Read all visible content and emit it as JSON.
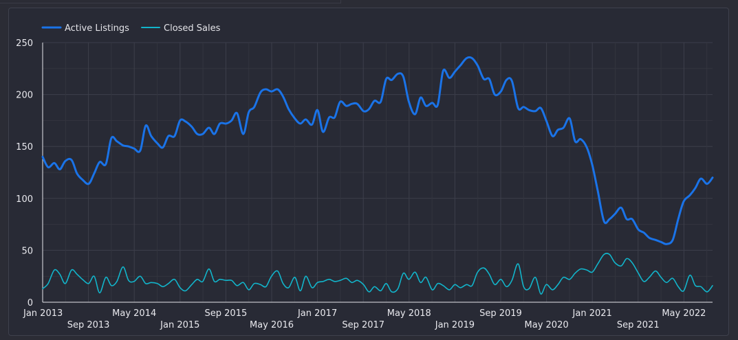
{
  "chart_data": {
    "type": "line",
    "x_ticks": [
      "Jan 2013",
      "Sep 2013",
      "May 2014",
      "Jan 2015",
      "Sep 2015",
      "May 2016",
      "Jan 2017",
      "Sep 2017",
      "May 2018",
      "Jan 2019",
      "Sep 2019",
      "May 2020",
      "Jan 2021",
      "Sep 2021",
      "May 2022"
    ],
    "y_ticks": [
      "0",
      "50",
      "100",
      "150",
      "200",
      "250"
    ],
    "ylim": [
      0,
      250
    ],
    "xlim": [
      2013.0,
      2022.75
    ],
    "grid": true,
    "legend_position": "top-left",
    "colors": {
      "background": "#282a35",
      "grid": "#3d3f4b",
      "axis": "#e6e6ea",
      "text": "#e9e9ee"
    },
    "series": [
      {
        "name": "Active Listings",
        "color": "#1a73e8",
        "points": [
          [
            2013.0,
            140
          ],
          [
            2013.08,
            130
          ],
          [
            2013.17,
            134
          ],
          [
            2013.25,
            128
          ],
          [
            2013.33,
            136
          ],
          [
            2013.42,
            137
          ],
          [
            2013.5,
            124
          ],
          [
            2013.58,
            118
          ],
          [
            2013.67,
            114
          ],
          [
            2013.75,
            124
          ],
          [
            2013.83,
            135
          ],
          [
            2013.92,
            133
          ],
          [
            2014.0,
            158
          ],
          [
            2014.08,
            155
          ],
          [
            2014.17,
            151
          ],
          [
            2014.25,
            150
          ],
          [
            2014.33,
            148
          ],
          [
            2014.42,
            146
          ],
          [
            2014.5,
            170
          ],
          [
            2014.58,
            160
          ],
          [
            2014.67,
            153
          ],
          [
            2014.75,
            149
          ],
          [
            2014.83,
            160
          ],
          [
            2014.92,
            160
          ],
          [
            2015.0,
            175
          ],
          [
            2015.08,
            174
          ],
          [
            2015.17,
            169
          ],
          [
            2015.25,
            162
          ],
          [
            2015.33,
            162
          ],
          [
            2015.42,
            168
          ],
          [
            2015.5,
            162
          ],
          [
            2015.58,
            172
          ],
          [
            2015.67,
            172
          ],
          [
            2015.75,
            175
          ],
          [
            2015.83,
            182
          ],
          [
            2015.92,
            162
          ],
          [
            2016.0,
            183
          ],
          [
            2016.08,
            188
          ],
          [
            2016.17,
            202
          ],
          [
            2016.25,
            205
          ],
          [
            2016.33,
            203
          ],
          [
            2016.42,
            205
          ],
          [
            2016.5,
            198
          ],
          [
            2016.58,
            186
          ],
          [
            2016.67,
            177
          ],
          [
            2016.75,
            172
          ],
          [
            2016.83,
            176
          ],
          [
            2016.92,
            171
          ],
          [
            2017.0,
            185
          ],
          [
            2017.08,
            164
          ],
          [
            2017.17,
            178
          ],
          [
            2017.25,
            178
          ],
          [
            2017.33,
            193
          ],
          [
            2017.42,
            189
          ],
          [
            2017.5,
            191
          ],
          [
            2017.58,
            191
          ],
          [
            2017.67,
            184
          ],
          [
            2017.75,
            186
          ],
          [
            2017.83,
            194
          ],
          [
            2017.92,
            193
          ],
          [
            2018.0,
            215
          ],
          [
            2018.08,
            214
          ],
          [
            2018.17,
            220
          ],
          [
            2018.25,
            217
          ],
          [
            2018.33,
            193
          ],
          [
            2018.42,
            181
          ],
          [
            2018.5,
            197
          ],
          [
            2018.58,
            189
          ],
          [
            2018.67,
            192
          ],
          [
            2018.75,
            190
          ],
          [
            2018.83,
            223
          ],
          [
            2018.92,
            216
          ],
          [
            2019.0,
            222
          ],
          [
            2019.08,
            228
          ],
          [
            2019.17,
            235
          ],
          [
            2019.25,
            235
          ],
          [
            2019.33,
            228
          ],
          [
            2019.42,
            215
          ],
          [
            2019.5,
            215
          ],
          [
            2019.58,
            200
          ],
          [
            2019.67,
            203
          ],
          [
            2019.75,
            214
          ],
          [
            2019.83,
            213
          ],
          [
            2019.92,
            187
          ],
          [
            2020.0,
            188
          ],
          [
            2020.08,
            185
          ],
          [
            2020.17,
            184
          ],
          [
            2020.25,
            187
          ],
          [
            2020.33,
            175
          ],
          [
            2020.42,
            160
          ],
          [
            2020.5,
            166
          ],
          [
            2020.58,
            168
          ],
          [
            2020.67,
            177
          ],
          [
            2020.75,
            155
          ],
          [
            2020.83,
            157
          ],
          [
            2020.92,
            149
          ],
          [
            2021.0,
            132
          ],
          [
            2021.08,
            107
          ],
          [
            2021.17,
            78
          ],
          [
            2021.25,
            80
          ],
          [
            2021.33,
            85
          ],
          [
            2021.42,
            91
          ],
          [
            2021.5,
            80
          ],
          [
            2021.58,
            80
          ],
          [
            2021.67,
            70
          ],
          [
            2021.75,
            67
          ],
          [
            2021.83,
            62
          ],
          [
            2021.92,
            60
          ],
          [
            2022.0,
            58
          ],
          [
            2022.08,
            56
          ],
          [
            2022.17,
            60
          ],
          [
            2022.25,
            80
          ],
          [
            2022.33,
            97
          ],
          [
            2022.42,
            103
          ],
          [
            2022.5,
            110
          ],
          [
            2022.58,
            119
          ],
          [
            2022.67,
            114
          ],
          [
            2022.75,
            120
          ]
        ]
      },
      {
        "name": "Closed Sales",
        "color": "#12b5cb",
        "points": [
          [
            2013.0,
            13
          ],
          [
            2013.08,
            18
          ],
          [
            2013.17,
            31
          ],
          [
            2013.25,
            27
          ],
          [
            2013.33,
            18
          ],
          [
            2013.42,
            31
          ],
          [
            2013.5,
            27
          ],
          [
            2013.58,
            22
          ],
          [
            2013.67,
            18
          ],
          [
            2013.75,
            25
          ],
          [
            2013.83,
            9
          ],
          [
            2013.92,
            24
          ],
          [
            2014.0,
            16
          ],
          [
            2014.08,
            20
          ],
          [
            2014.17,
            34
          ],
          [
            2014.25,
            21
          ],
          [
            2014.33,
            20
          ],
          [
            2014.42,
            25
          ],
          [
            2014.5,
            18
          ],
          [
            2014.58,
            19
          ],
          [
            2014.67,
            18
          ],
          [
            2014.75,
            15
          ],
          [
            2014.83,
            18
          ],
          [
            2014.92,
            22
          ],
          [
            2015.0,
            14
          ],
          [
            2015.08,
            11
          ],
          [
            2015.17,
            17
          ],
          [
            2015.25,
            22
          ],
          [
            2015.33,
            20
          ],
          [
            2015.42,
            32
          ],
          [
            2015.5,
            20
          ],
          [
            2015.58,
            22
          ],
          [
            2015.67,
            21
          ],
          [
            2015.75,
            21
          ],
          [
            2015.83,
            16
          ],
          [
            2015.92,
            19
          ],
          [
            2016.0,
            12
          ],
          [
            2016.08,
            18
          ],
          [
            2016.17,
            17
          ],
          [
            2016.25,
            15
          ],
          [
            2016.33,
            25
          ],
          [
            2016.42,
            30
          ],
          [
            2016.5,
            18
          ],
          [
            2016.58,
            14
          ],
          [
            2016.67,
            24
          ],
          [
            2016.75,
            11
          ],
          [
            2016.83,
            25
          ],
          [
            2016.92,
            14
          ],
          [
            2017.0,
            19
          ],
          [
            2017.08,
            20
          ],
          [
            2017.17,
            22
          ],
          [
            2017.25,
            20
          ],
          [
            2017.33,
            21
          ],
          [
            2017.42,
            23
          ],
          [
            2017.5,
            19
          ],
          [
            2017.58,
            21
          ],
          [
            2017.67,
            17
          ],
          [
            2017.75,
            10
          ],
          [
            2017.83,
            15
          ],
          [
            2017.92,
            11
          ],
          [
            2018.0,
            18
          ],
          [
            2018.08,
            10
          ],
          [
            2018.17,
            13
          ],
          [
            2018.25,
            28
          ],
          [
            2018.33,
            22
          ],
          [
            2018.42,
            29
          ],
          [
            2018.5,
            19
          ],
          [
            2018.58,
            24
          ],
          [
            2018.67,
            12
          ],
          [
            2018.75,
            18
          ],
          [
            2018.83,
            16
          ],
          [
            2018.92,
            12
          ],
          [
            2019.0,
            17
          ],
          [
            2019.08,
            14
          ],
          [
            2019.17,
            17
          ],
          [
            2019.25,
            16
          ],
          [
            2019.33,
            29
          ],
          [
            2019.42,
            33
          ],
          [
            2019.5,
            27
          ],
          [
            2019.58,
            17
          ],
          [
            2019.67,
            22
          ],
          [
            2019.75,
            15
          ],
          [
            2019.83,
            21
          ],
          [
            2019.92,
            37
          ],
          [
            2020.0,
            15
          ],
          [
            2020.08,
            13
          ],
          [
            2020.17,
            24
          ],
          [
            2020.25,
            8
          ],
          [
            2020.33,
            17
          ],
          [
            2020.42,
            12
          ],
          [
            2020.5,
            17
          ],
          [
            2020.58,
            24
          ],
          [
            2020.67,
            22
          ],
          [
            2020.75,
            28
          ],
          [
            2020.83,
            32
          ],
          [
            2020.92,
            31
          ],
          [
            2021.0,
            29
          ],
          [
            2021.08,
            37
          ],
          [
            2021.17,
            46
          ],
          [
            2021.25,
            46
          ],
          [
            2021.33,
            38
          ],
          [
            2021.42,
            35
          ],
          [
            2021.5,
            42
          ],
          [
            2021.58,
            38
          ],
          [
            2021.67,
            28
          ],
          [
            2021.75,
            20
          ],
          [
            2021.83,
            24
          ],
          [
            2021.92,
            30
          ],
          [
            2022.0,
            24
          ],
          [
            2022.08,
            19
          ],
          [
            2022.17,
            23
          ],
          [
            2022.25,
            15
          ],
          [
            2022.33,
            11
          ],
          [
            2022.42,
            26
          ],
          [
            2022.5,
            16
          ],
          [
            2022.58,
            15
          ],
          [
            2022.67,
            10
          ],
          [
            2022.75,
            16
          ]
        ]
      }
    ]
  }
}
